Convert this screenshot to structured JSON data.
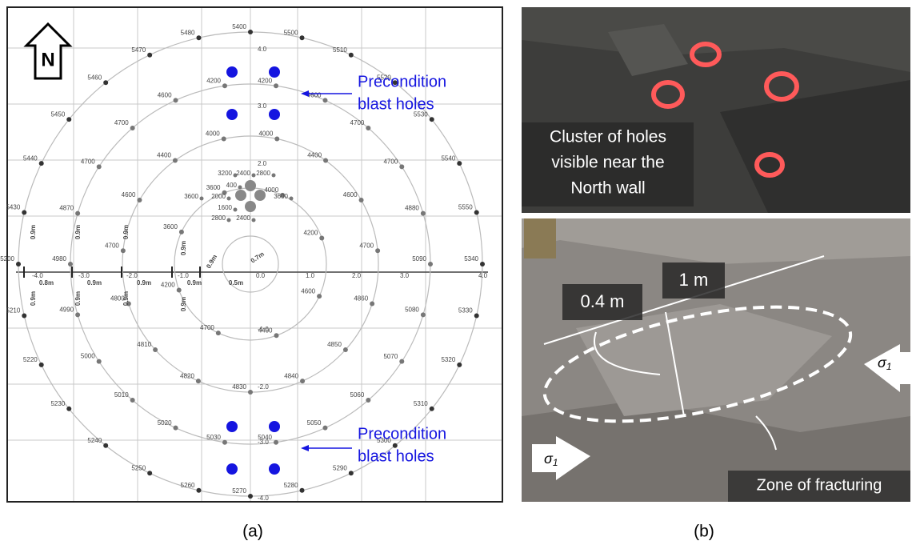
{
  "panel_a": {
    "north_label": "N",
    "outer_ring": [
      "5400",
      "5500",
      "5510",
      "5520",
      "5530",
      "5540",
      "5550",
      "5340",
      "5330",
      "5320",
      "5310",
      "5300",
      "5290",
      "5280",
      "5270",
      "5260",
      "5250",
      "5240",
      "5230",
      "5220",
      "5210",
      "5200",
      "5430",
      "5440",
      "5450",
      "5460",
      "5470",
      "5480"
    ],
    "ring_b": [
      "4200",
      "4200",
      "4600",
      "4700",
      "4700",
      "4880",
      "5090",
      "5080",
      "5070",
      "5060",
      "5050",
      "5040",
      "5030",
      "5020",
      "5010",
      "5000",
      "4990",
      "4980",
      "4870",
      "4700",
      "4700",
      "4600"
    ],
    "ring_c": [
      "4000",
      "4000",
      "4400",
      "4600",
      "4700",
      "4860",
      "4850",
      "4840",
      "4830",
      "4820",
      "4810",
      "4800",
      "4700",
      "4600",
      "4400"
    ],
    "ring_d": [
      "3600",
      "4000",
      "4200",
      "4600",
      "4400",
      "4700",
      "4200",
      "3600"
    ],
    "center_labels": [
      "3200",
      "2400",
      "2800",
      "400",
      "2000",
      "3600",
      "1600",
      "2800",
      "2400",
      "3600"
    ],
    "spacing_labels": [
      "0.8m",
      "0.9m",
      "0.9m",
      "0.9m",
      "0.9m",
      "0.5m",
      "0.7m",
      "0.9m",
      "0.9m",
      "0.9m",
      "0.9m",
      "0.9m",
      "0.9m",
      "0.9m",
      "0.9m"
    ],
    "axis_labels": [
      "-4.0",
      "-3.0",
      "-2.0",
      "-1.0",
      "0.0",
      "1.0",
      "2.0",
      "3.0",
      "4.0",
      "4.0",
      "3.0",
      "2.0",
      "-1.0",
      "-2.0",
      "-3.0",
      "-4.0"
    ],
    "annotations": [
      [
        "Precondition",
        "blast holes"
      ],
      [
        "Precondition",
        "blast holes"
      ]
    ]
  },
  "panel_b": {
    "top_caption": [
      "Cluster of holes",
      "visible near the",
      "North wall"
    ],
    "dimension_labels": [
      "0.4 m",
      "1 m"
    ],
    "stress_symbol": "σ",
    "stress_subscript": "1",
    "bottom_caption": "Zone of fracturing"
  },
  "captions": [
    "(a)",
    "(b)"
  ]
}
